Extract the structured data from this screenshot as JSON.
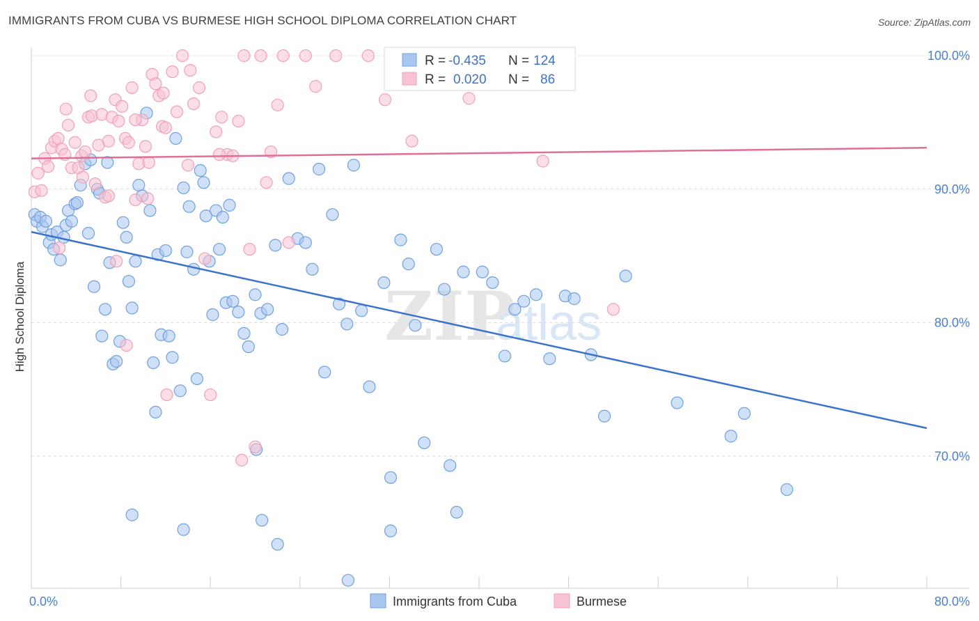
{
  "title": "IMMIGRANTS FROM CUBA VS BURMESE HIGH SCHOOL DIPLOMA CORRELATION CHART",
  "source": "Source: ZipAtlas.com",
  "watermark": {
    "zip": "ZIP",
    "atlas": "atlas"
  },
  "chart_data": {
    "type": "scatter",
    "xlabel": "",
    "ylabel": "High School Diploma",
    "xlim": [
      0,
      80
    ],
    "ylim": [
      60,
      100
    ],
    "y_ticks": [
      70,
      80,
      90,
      100
    ],
    "y_tick_labels": [
      "70.0%",
      "80.0%",
      "90.0%",
      "100.0%"
    ],
    "x_tick_labels": [
      "0.0%",
      "80.0%"
    ],
    "grid": "horizontal dashed",
    "legend_position": "bottom-center",
    "stats_box": [
      {
        "series": "Immigrants from Cuba",
        "r_label": "R =",
        "r": "-0.435",
        "n_label": "N =",
        "n": "124"
      },
      {
        "series": "Burmese",
        "r_label": "R =",
        "r": "0.020",
        "n_label": "N =",
        "n": "86"
      }
    ],
    "series": [
      {
        "name": "Immigrants from Cuba",
        "color": "#6fa0e0",
        "fill": "#a9c6ee",
        "trend_color": "#3a72cc",
        "trend": {
          "x": [
            0,
            80
          ],
          "y": [
            86.8,
            72.1
          ]
        },
        "points": [
          [
            0.3,
            88.1
          ],
          [
            0.5,
            87.6
          ],
          [
            0.8,
            87.9
          ],
          [
            1.0,
            87.2
          ],
          [
            1.3,
            87.6
          ],
          [
            1.6,
            86.0
          ],
          [
            1.8,
            86.6
          ],
          [
            2.0,
            85.5
          ],
          [
            2.3,
            86.8
          ],
          [
            2.6,
            84.7
          ],
          [
            2.9,
            86.4
          ],
          [
            3.1,
            87.3
          ],
          [
            3.3,
            88.4
          ],
          [
            3.6,
            87.6
          ],
          [
            3.9,
            88.9
          ],
          [
            4.1,
            89.0
          ],
          [
            4.4,
            90.3
          ],
          [
            4.8,
            91.9
          ],
          [
            5.1,
            86.7
          ],
          [
            5.3,
            92.2
          ],
          [
            5.6,
            82.7
          ],
          [
            5.9,
            90.0
          ],
          [
            6.1,
            89.7
          ],
          [
            6.3,
            79.0
          ],
          [
            6.6,
            81.0
          ],
          [
            6.8,
            92.0
          ],
          [
            7.0,
            84.5
          ],
          [
            7.3,
            76.9
          ],
          [
            7.6,
            77.1
          ],
          [
            7.9,
            78.6
          ],
          [
            8.2,
            87.5
          ],
          [
            8.5,
            86.4
          ],
          [
            8.7,
            83.1
          ],
          [
            9.0,
            81.1
          ],
          [
            9.3,
            84.6
          ],
          [
            9.6,
            90.3
          ],
          [
            9.9,
            89.5
          ],
          [
            10.3,
            95.7
          ],
          [
            10.6,
            88.4
          ],
          [
            10.9,
            77.0
          ],
          [
            11.3,
            85.1
          ],
          [
            11.6,
            79.1
          ],
          [
            12.0,
            85.4
          ],
          [
            12.3,
            79.0
          ],
          [
            12.6,
            77.4
          ],
          [
            12.9,
            93.8
          ],
          [
            13.3,
            74.9
          ],
          [
            13.6,
            90.1
          ],
          [
            13.9,
            85.3
          ],
          [
            14.1,
            88.7
          ],
          [
            14.5,
            84.0
          ],
          [
            14.8,
            75.8
          ],
          [
            15.1,
            91.4
          ],
          [
            15.4,
            90.5
          ],
          [
            15.6,
            88.0
          ],
          [
            15.9,
            84.6
          ],
          [
            16.2,
            80.6
          ],
          [
            16.5,
            88.4
          ],
          [
            16.8,
            85.5
          ],
          [
            17.1,
            87.9
          ],
          [
            17.4,
            81.5
          ],
          [
            17.7,
            88.8
          ],
          [
            18.0,
            81.6
          ],
          [
            18.5,
            80.8
          ],
          [
            19.0,
            79.2
          ],
          [
            19.4,
            78.2
          ],
          [
            20.0,
            82.1
          ],
          [
            20.5,
            80.7
          ],
          [
            21.1,
            81.0
          ],
          [
            21.8,
            85.8
          ],
          [
            22.4,
            79.5
          ],
          [
            23.0,
            90.8
          ],
          [
            23.8,
            86.3
          ],
          [
            24.5,
            86.0
          ],
          [
            25.1,
            84.0
          ],
          [
            25.7,
            91.5
          ],
          [
            26.2,
            76.3
          ],
          [
            26.9,
            88.1
          ],
          [
            27.5,
            81.4
          ],
          [
            28.2,
            79.9
          ],
          [
            28.8,
            91.8
          ],
          [
            29.5,
            80.9
          ],
          [
            30.2,
            75.2
          ],
          [
            31.5,
            83.0
          ],
          [
            32.1,
            68.4
          ],
          [
            33.0,
            86.2
          ],
          [
            33.7,
            84.4
          ],
          [
            34.3,
            79.8
          ],
          [
            35.1,
            71.0
          ],
          [
            36.2,
            85.5
          ],
          [
            36.9,
            82.5
          ],
          [
            38.0,
            65.8
          ],
          [
            38.6,
            83.8
          ],
          [
            40.3,
            83.8
          ],
          [
            41.2,
            83.0
          ],
          [
            42.3,
            77.5
          ],
          [
            43.2,
            81.0
          ],
          [
            44.0,
            81.6
          ],
          [
            45.1,
            82.1
          ],
          [
            46.3,
            77.3
          ],
          [
            47.7,
            82.0
          ],
          [
            48.5,
            81.8
          ],
          [
            50.0,
            77.6
          ],
          [
            51.2,
            73.0
          ],
          [
            53.1,
            83.5
          ],
          [
            57.7,
            74.0
          ],
          [
            62.5,
            71.5
          ],
          [
            63.7,
            73.2
          ],
          [
            67.5,
            67.5
          ],
          [
            9.0,
            65.6
          ],
          [
            13.6,
            64.5
          ],
          [
            22.0,
            63.4
          ],
          [
            28.3,
            60.7
          ],
          [
            32.1,
            64.4
          ],
          [
            37.4,
            69.3
          ],
          [
            20.1,
            70.5
          ],
          [
            11.1,
            73.3
          ],
          [
            20.6,
            65.2
          ]
        ]
      },
      {
        "name": "Burmese",
        "color": "#f0a0b8",
        "fill": "#f7c3d2",
        "trend_color": "#e06f95",
        "trend": {
          "x": [
            0,
            80
          ],
          "y": [
            92.3,
            93.1
          ]
        },
        "points": [
          [
            0.3,
            89.8
          ],
          [
            0.6,
            91.2
          ],
          [
            0.9,
            89.9
          ],
          [
            1.2,
            92.3
          ],
          [
            1.5,
            91.7
          ],
          [
            1.8,
            93.1
          ],
          [
            2.1,
            93.6
          ],
          [
            2.4,
            93.8
          ],
          [
            2.7,
            93.0
          ],
          [
            3.0,
            92.6
          ],
          [
            3.3,
            94.8
          ],
          [
            3.6,
            91.6
          ],
          [
            3.9,
            93.5
          ],
          [
            4.2,
            91.6
          ],
          [
            4.5,
            92.5
          ],
          [
            4.8,
            92.8
          ],
          [
            5.1,
            95.4
          ],
          [
            5.4,
            95.5
          ],
          [
            5.7,
            90.4
          ],
          [
            6.0,
            93.3
          ],
          [
            6.3,
            95.6
          ],
          [
            6.6,
            89.4
          ],
          [
            6.9,
            93.6
          ],
          [
            7.2,
            95.4
          ],
          [
            7.5,
            96.7
          ],
          [
            7.8,
            95.1
          ],
          [
            8.1,
            96.2
          ],
          [
            8.4,
            93.8
          ],
          [
            8.7,
            93.5
          ],
          [
            9.0,
            97.6
          ],
          [
            9.3,
            89.2
          ],
          [
            9.6,
            91.9
          ],
          [
            9.9,
            95.2
          ],
          [
            10.2,
            93.2
          ],
          [
            10.5,
            92.0
          ],
          [
            10.8,
            98.6
          ],
          [
            11.1,
            97.9
          ],
          [
            11.4,
            97.0
          ],
          [
            11.7,
            94.7
          ],
          [
            12.0,
            94.6
          ],
          [
            12.6,
            98.8
          ],
          [
            13.0,
            95.8
          ],
          [
            13.5,
            100.0
          ],
          [
            14.0,
            91.8
          ],
          [
            14.5,
            96.4
          ],
          [
            15.0,
            97.6
          ],
          [
            15.5,
            84.8
          ],
          [
            16.0,
            74.6
          ],
          [
            16.5,
            94.3
          ],
          [
            17.0,
            95.4
          ],
          [
            17.5,
            92.6
          ],
          [
            18.0,
            92.5
          ],
          [
            18.5,
            95.1
          ],
          [
            19.0,
            100.0
          ],
          [
            19.5,
            85.5
          ],
          [
            20.0,
            70.7
          ],
          [
            20.5,
            100.0
          ],
          [
            21.0,
            90.5
          ],
          [
            21.4,
            92.8
          ],
          [
            22.0,
            96.3
          ],
          [
            22.5,
            100.0
          ],
          [
            23.0,
            86.0
          ],
          [
            24.5,
            100.0
          ],
          [
            25.4,
            97.7
          ],
          [
            27.2,
            100.0
          ],
          [
            30.1,
            100.0
          ],
          [
            31.6,
            96.7
          ],
          [
            34.0,
            93.6
          ],
          [
            36.3,
            100.0
          ],
          [
            39.1,
            96.8
          ],
          [
            45.7,
            92.1
          ],
          [
            52.0,
            81.0
          ],
          [
            18.8,
            69.7
          ],
          [
            4.6,
            90.9
          ],
          [
            10.4,
            89.3
          ],
          [
            6.9,
            89.5
          ],
          [
            7.6,
            84.6
          ],
          [
            2.5,
            85.6
          ],
          [
            12.1,
            74.6
          ],
          [
            3.1,
            96.0
          ],
          [
            8.5,
            78.3
          ],
          [
            5.3,
            97.0
          ],
          [
            14.2,
            98.9
          ],
          [
            9.3,
            95.2
          ],
          [
            11.8,
            97.2
          ],
          [
            16.8,
            92.6
          ]
        ]
      }
    ]
  }
}
